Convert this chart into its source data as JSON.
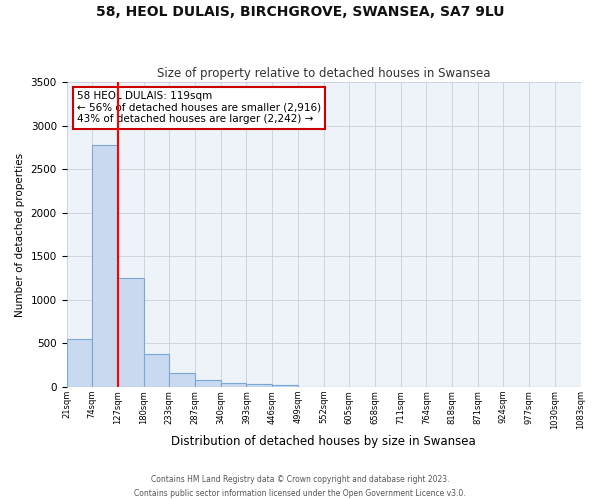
{
  "title": "58, HEOL DULAIS, BIRCHGROVE, SWANSEA, SA7 9LU",
  "subtitle": "Size of property relative to detached houses in Swansea",
  "xlabel": "Distribution of detached houses by size in Swansea",
  "ylabel": "Number of detached properties",
  "bin_labels": [
    "21sqm",
    "74sqm",
    "127sqm",
    "180sqm",
    "233sqm",
    "287sqm",
    "340sqm",
    "393sqm",
    "446sqm",
    "499sqm",
    "552sqm",
    "605sqm",
    "658sqm",
    "711sqm",
    "764sqm",
    "818sqm",
    "871sqm",
    "924sqm",
    "977sqm",
    "1030sqm",
    "1083sqm"
  ],
  "bar_values": [
    550,
    2780,
    1250,
    380,
    160,
    80,
    50,
    30,
    20,
    0,
    0,
    0,
    0,
    0,
    0,
    0,
    0,
    0,
    0,
    0
  ],
  "bar_color": "#c8d9f0",
  "bar_edge_color": "#7aa8d4",
  "red_line_x": 1.5,
  "annotation_line1": "58 HEOL DULAIS: 119sqm",
  "annotation_line2": "← 56% of detached houses are smaller (2,916)",
  "annotation_line3": "43% of detached houses are larger (2,242) →",
  "annotation_box_facecolor": "#ffffff",
  "annotation_box_edgecolor": "#cc0000",
  "ylim": [
    0,
    3500
  ],
  "yticks": [
    0,
    500,
    1000,
    1500,
    2000,
    2500,
    3000,
    3500
  ],
  "footer_line1": "Contains HM Land Registry data © Crown copyright and database right 2023.",
  "footer_line2": "Contains public sector information licensed under the Open Government Licence v3.0.",
  "bg_color": "#ffffff",
  "plot_bg_color": "#eef2f9",
  "grid_color": "#c8d0dc"
}
